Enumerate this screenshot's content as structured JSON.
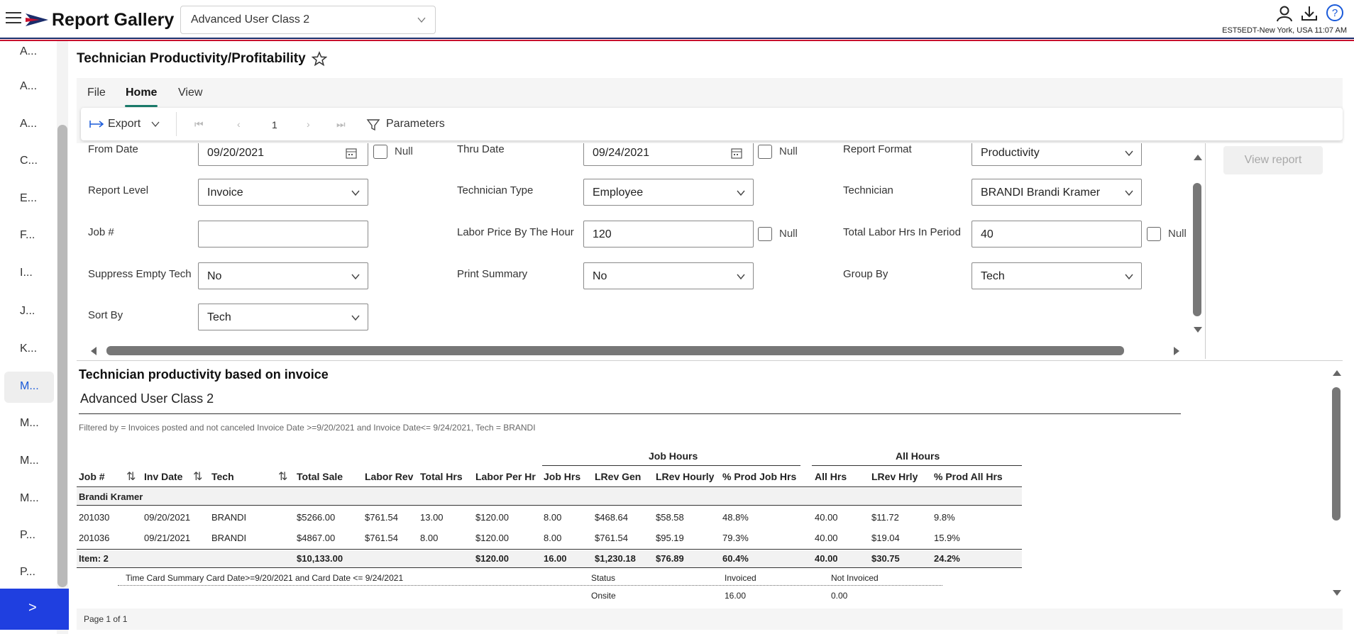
{
  "header": {
    "app_title": "Report Gallery",
    "gallery_select": "Advanced User Class 2",
    "timezone_text": "EST5EDT-New York, USA 11:07 AM"
  },
  "sidenav": {
    "items": [
      "A...",
      "A...",
      "A...",
      "C...",
      "E...",
      "F...",
      "I...",
      "J...",
      "K...",
      "M...",
      "M...",
      "M...",
      "M...",
      "P...",
      "P..."
    ],
    "active_index": 9,
    "expand_label": ">"
  },
  "report": {
    "title": "Technician Productivity/Profitability"
  },
  "ribbon": {
    "tabs": [
      "File",
      "Home",
      "View"
    ],
    "active_tab": "Home",
    "export_label": "Export",
    "page_number": "1",
    "parameters_label": "Parameters"
  },
  "params": {
    "from_date": {
      "label": "From Date",
      "value": "09/20/2021",
      "null_label": "Null"
    },
    "thru_date": {
      "label": "Thru Date",
      "value": "09/24/2021",
      "null_label": "Null"
    },
    "report_format": {
      "label": "Report Format",
      "value": "Productivity"
    },
    "report_level": {
      "label": "Report Level",
      "value": "Invoice"
    },
    "technician_type": {
      "label": "Technician Type",
      "value": "Employee"
    },
    "technician": {
      "label": "Technician",
      "value": "BRANDI Brandi Kramer"
    },
    "job_number": {
      "label": "Job #",
      "value": ""
    },
    "labor_price": {
      "label": "Labor Price By The Hour",
      "value": "120",
      "null_label": "Null"
    },
    "total_labor_hrs": {
      "label": "Total Labor Hrs In Period",
      "value": "40",
      "null_label": "Null"
    },
    "suppress_empty_tech": {
      "label": "Suppress Empty Tech",
      "value": "No"
    },
    "print_summary": {
      "label": "Print Summary",
      "value": "No"
    },
    "group_by": {
      "label": "Group By",
      "value": "Tech"
    },
    "sort_by": {
      "label": "Sort By",
      "value": "Tech"
    },
    "view_report_label": "View report"
  },
  "report_body": {
    "title": "Technician productivity based on invoice",
    "subtitle": "Advanced User Class 2",
    "filter_text": "Filtered by = Invoices posted and not canceled Invoice Date >=9/20/2021 and Invoice Date<= 9/24/2021, Tech = BRANDI",
    "group_headers": {
      "job_hours": "Job Hours",
      "all_hours": "All Hours"
    },
    "columns": [
      "Job #",
      "Inv Date",
      "Tech",
      "Total Sale",
      "Labor Rev",
      "Total Hrs",
      "Labor Per Hr",
      "Job Hrs",
      "LRev Gen",
      "LRev Hourly",
      "% Prod Job Hrs",
      "All Hrs",
      "LRev Hrly",
      "% Prod All Hrs"
    ],
    "group_name": "Brandi Kramer",
    "rows": [
      [
        "201030",
        "09/20/2021",
        "BRANDI",
        "$5266.00",
        "$761.54",
        "13.00",
        "$120.00",
        "8.00",
        "$468.64",
        "$58.58",
        "48.8%",
        "40.00",
        "$11.72",
        "9.8%"
      ],
      [
        "201036",
        "09/21/2021",
        "BRANDI",
        "$4867.00",
        "$761.54",
        "8.00",
        "$120.00",
        "8.00",
        "$761.54",
        "$95.19",
        "79.3%",
        "40.00",
        "$19.04",
        "15.9%"
      ]
    ],
    "total": {
      "label": "Item: 2",
      "total_sale": "$10,133.00",
      "labor_per_hr": "$120.00",
      "job_hrs": "16.00",
      "lrev_gen": "$1,230.18",
      "lrev_hourly": "$76.89",
      "prod_job_hrs": "60.4%",
      "all_hrs": "40.00",
      "lrev_hrly": "$30.75",
      "prod_all_hrs": "24.2%"
    },
    "time_card": {
      "title": "Time Card Summary Card Date>=9/20/2021 and Card Date <= 9/24/2021",
      "headers": [
        "Status",
        "Invoiced",
        "Not Invoiced"
      ],
      "row": [
        "Onsite",
        "16.00",
        "0.00"
      ]
    },
    "page_label": "Page 1 of 1"
  }
}
